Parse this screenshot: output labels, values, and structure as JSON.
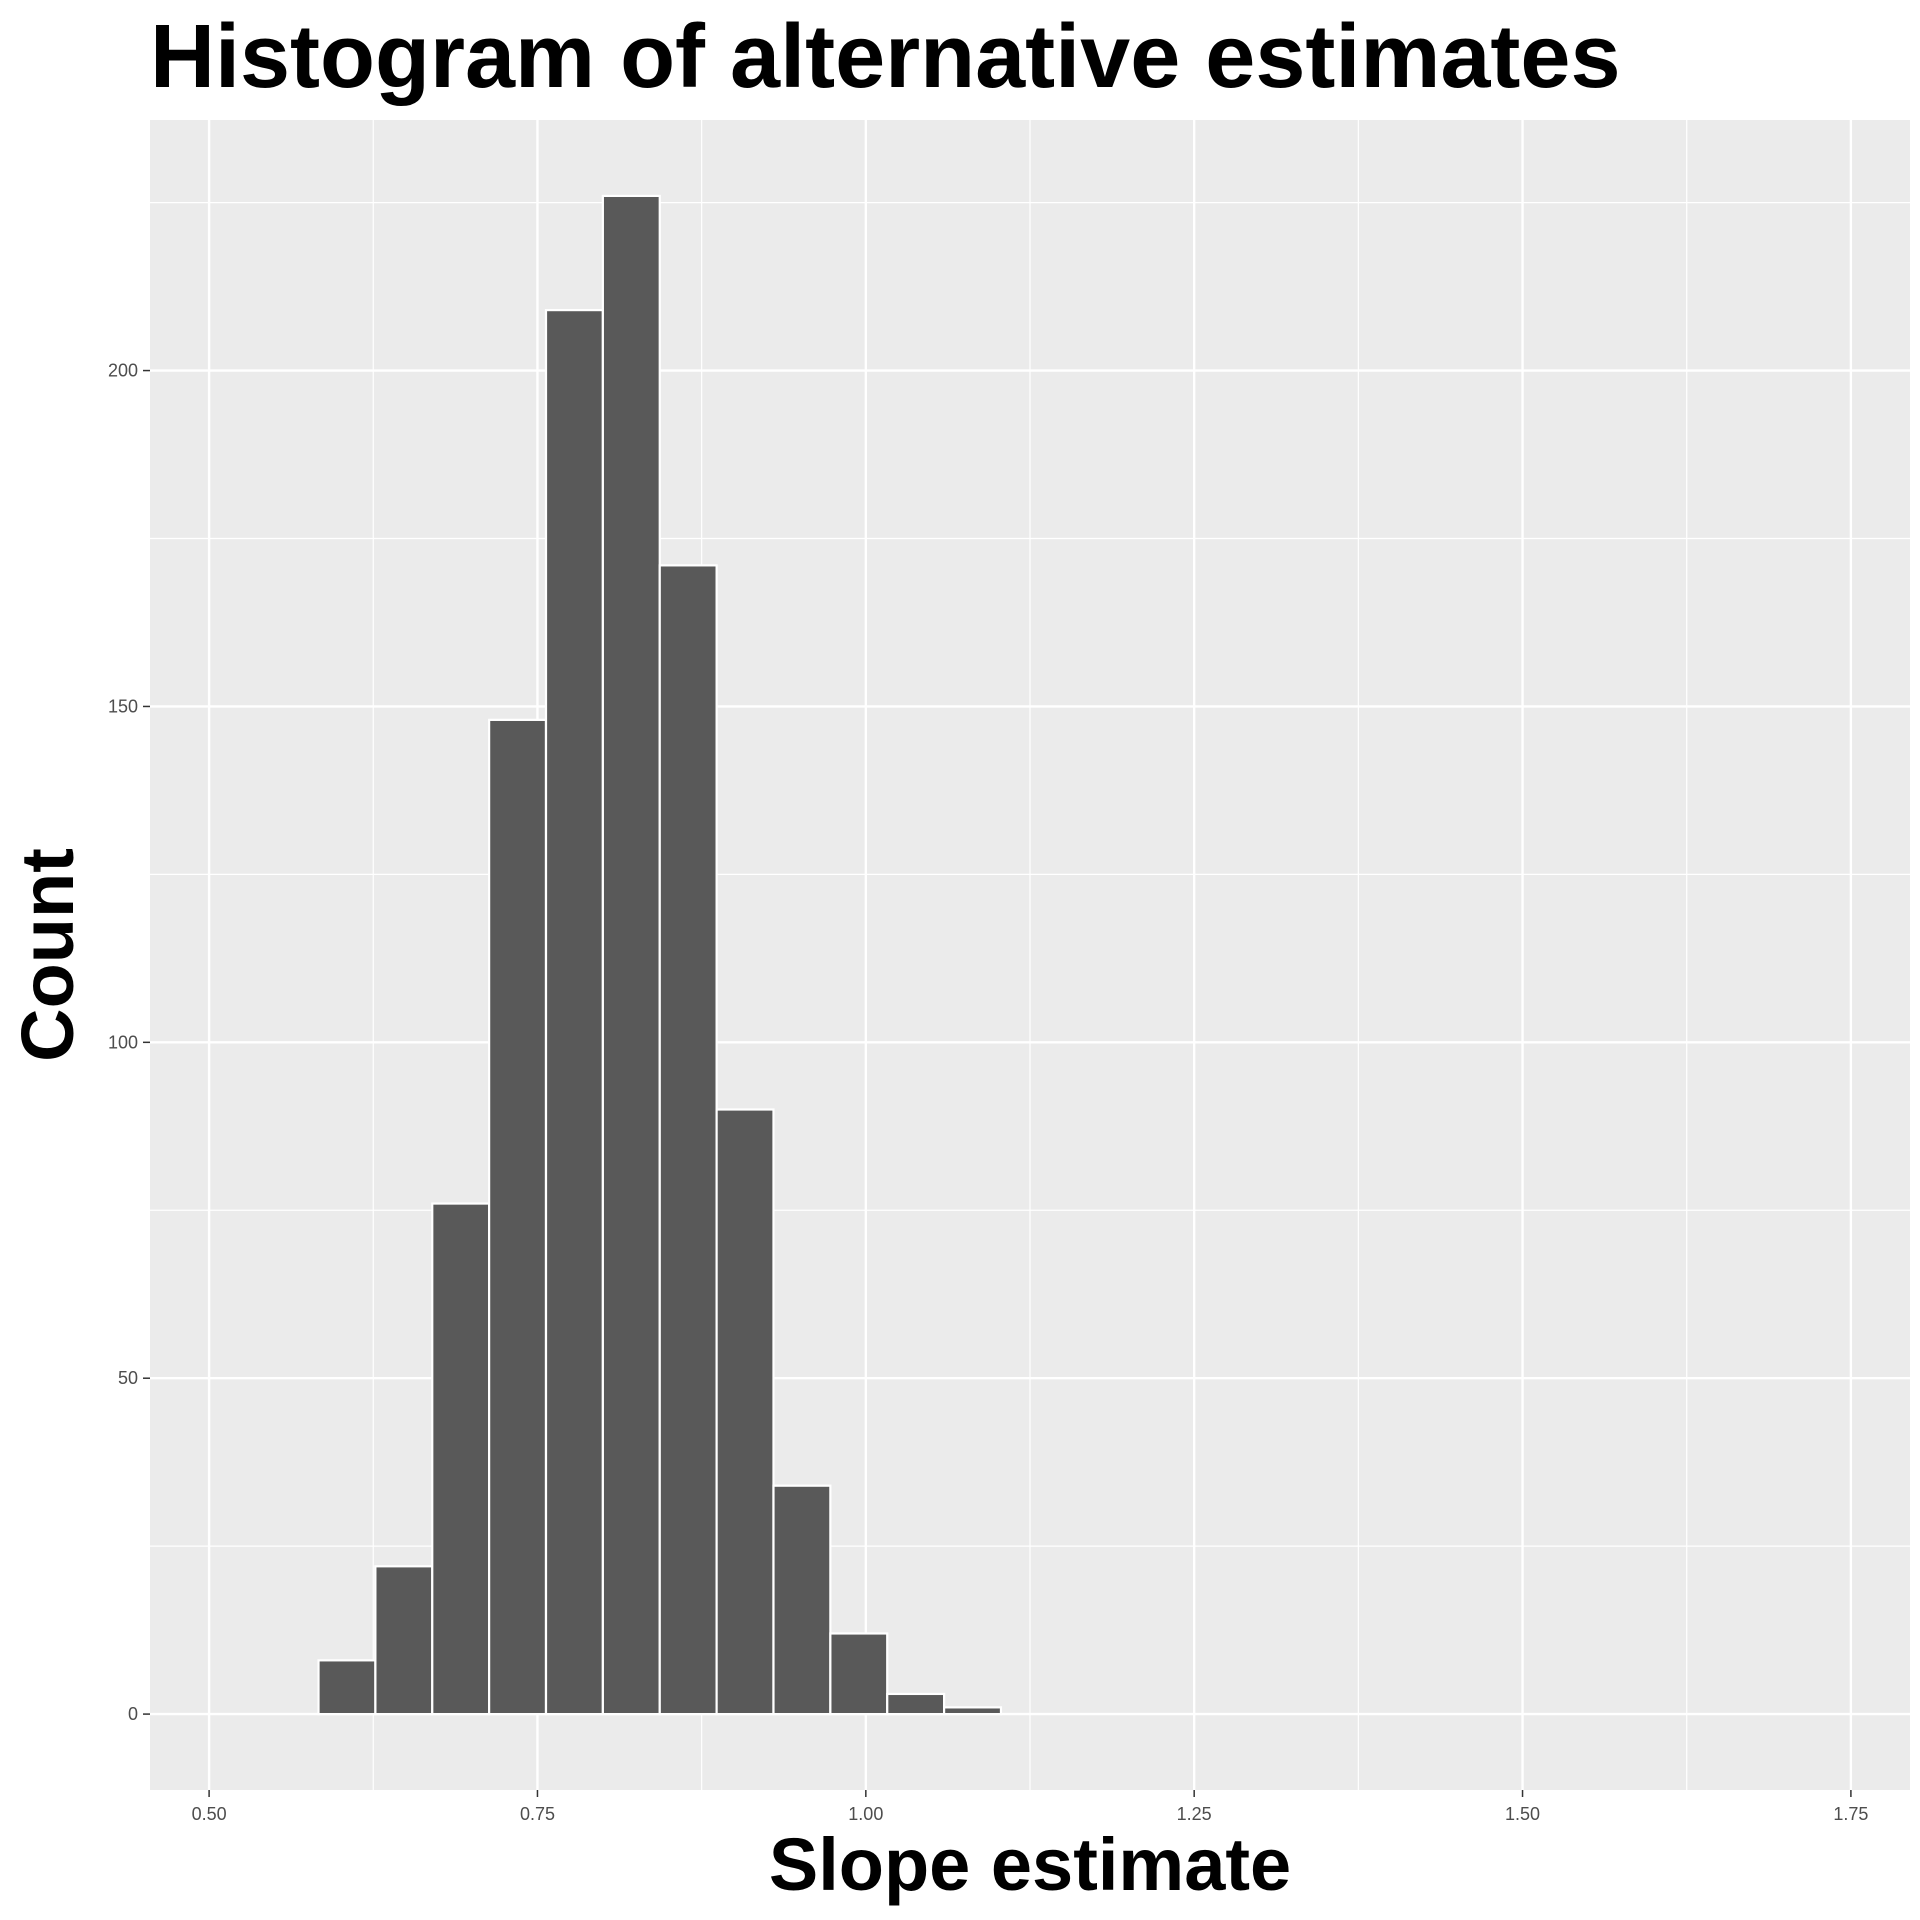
{
  "chart_data": {
    "type": "bar",
    "title": "Histogram of alternative estimates",
    "xlabel": "Slope estimate",
    "ylabel": "Count",
    "xlim": [
      0.455,
      1.795
    ],
    "ylim": [
      -11.3,
      237.3
    ],
    "x_ticks": [
      "0.50",
      "0.75",
      "1.00",
      "1.25",
      "1.50",
      "1.75"
    ],
    "x_tick_values": [
      0.5,
      0.75,
      1.0,
      1.25,
      1.5,
      1.75
    ],
    "y_ticks": [
      "0",
      "50",
      "100",
      "150",
      "200"
    ],
    "y_tick_values": [
      0,
      50,
      100,
      150,
      200
    ],
    "bin_width": 0.0433,
    "bins": [
      {
        "x0": 0.5833,
        "x1": 0.6266,
        "count": 8
      },
      {
        "x0": 0.6266,
        "x1": 0.6699,
        "count": 22
      },
      {
        "x0": 0.6699,
        "x1": 0.7132,
        "count": 76
      },
      {
        "x0": 0.7132,
        "x1": 0.7565,
        "count": 148
      },
      {
        "x0": 0.7565,
        "x1": 0.7998,
        "count": 209
      },
      {
        "x0": 0.7998,
        "x1": 0.8431,
        "count": 226
      },
      {
        "x0": 0.8431,
        "x1": 0.8864,
        "count": 171
      },
      {
        "x0": 0.8864,
        "x1": 0.9297,
        "count": 90
      },
      {
        "x0": 0.9297,
        "x1": 0.973,
        "count": 34
      },
      {
        "x0": 0.973,
        "x1": 1.0163,
        "count": 12
      },
      {
        "x0": 1.0163,
        "x1": 1.0596,
        "count": 3
      },
      {
        "x0": 1.0596,
        "x1": 1.1029,
        "count": 1
      },
      {
        "x0": 1.1029,
        "x1": 1.1462,
        "count": 0
      },
      {
        "x0": 1.1462,
        "x1": 1.1895,
        "count": 0
      },
      {
        "x0": 1.1895,
        "x1": 1.2328,
        "count": 0
      },
      {
        "x0": 1.2328,
        "x1": 1.2761,
        "count": 0
      },
      {
        "x0": 1.2761,
        "x1": 1.3194,
        "count": 0
      },
      {
        "x0": 1.3194,
        "x1": 1.3627,
        "count": 0
      },
      {
        "x0": 1.3627,
        "x1": 1.406,
        "count": 0
      },
      {
        "x0": 1.406,
        "x1": 1.4493,
        "count": 0
      },
      {
        "x0": 1.4493,
        "x1": 1.4926,
        "count": 0
      },
      {
        "x0": 1.4926,
        "x1": 1.5359,
        "count": 0
      },
      {
        "x0": 1.5359,
        "x1": 1.5792,
        "count": 0
      },
      {
        "x0": 1.5792,
        "x1": 1.6225,
        "count": 0
      },
      {
        "x0": 1.6225,
        "x1": 1.6658,
        "count": 0
      },
      {
        "x0": 1.6658,
        "x1": 1.7091,
        "count": 0
      },
      {
        "x0": 1.7091,
        "x1": 1.7524,
        "count": 0
      }
    ],
    "grid": true,
    "legend": "none",
    "colors": {
      "panel_background": "#ebebeb",
      "grid_line": "#ffffff",
      "bar_fill": "#595959",
      "bar_outline": "#ffffff",
      "tick_text": "#4d4d4d",
      "tick_mark": "#333333"
    }
  }
}
